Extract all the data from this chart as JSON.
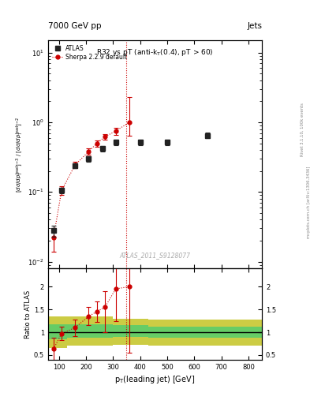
{
  "title_top": "7000 GeV pp",
  "title_right": "Jets",
  "plot_title": "R32 vs pT (anti-k_{T}(0.4), pT > 60)",
  "ylabel_main": "[dσ/dp_{T}^{lead}]^{-3} / [dσ/dp_{T}^{lead}]^{-2}",
  "ylabel_ratio": "Ratio to ATLAS",
  "xlabel": "p_{T}(leading jet) [GeV]",
  "watermark": "ATLAS_2011_S9128077",
  "right_label": "Rivet 3.1.10, 100k events",
  "right_label2": "mcplots.cern.ch [arXiv:1306.3436]",
  "atlas_x": [
    80,
    110,
    160,
    210,
    260,
    310,
    400,
    500,
    650
  ],
  "atlas_y": [
    0.028,
    0.105,
    0.24,
    0.3,
    0.42,
    0.52,
    0.52,
    0.52,
    0.65
  ],
  "atlas_yerr_lo": [
    0.005,
    0.01,
    0.02,
    0.03,
    0.04,
    0.05,
    0.05,
    0.05,
    0.06
  ],
  "atlas_yerr_hi": [
    0.005,
    0.01,
    0.02,
    0.03,
    0.04,
    0.05,
    0.05,
    0.05,
    0.06
  ],
  "sherpa_x": [
    80,
    110,
    160,
    210,
    240,
    270,
    310,
    360
  ],
  "sherpa_y": [
    0.022,
    0.105,
    0.245,
    0.38,
    0.5,
    0.62,
    0.75,
    1.0
  ],
  "sherpa_yerr_lo": [
    0.008,
    0.015,
    0.025,
    0.04,
    0.05,
    0.06,
    0.09,
    0.35
  ],
  "sherpa_yerr_hi": [
    0.008,
    0.015,
    0.025,
    0.04,
    0.05,
    0.06,
    0.09,
    1.3
  ],
  "ratio_sherpa_x": [
    80,
    110,
    160,
    210,
    240,
    270,
    310,
    360
  ],
  "ratio_sherpa_y": [
    0.63,
    0.97,
    1.1,
    1.35,
    1.45,
    1.55,
    1.95,
    2.0
  ],
  "ratio_sherpa_yerr_lo": [
    0.25,
    0.15,
    0.18,
    0.2,
    0.22,
    0.55,
    0.7,
    1.45
  ],
  "ratio_sherpa_yerr_hi": [
    0.25,
    0.15,
    0.18,
    0.2,
    0.22,
    0.35,
    0.55,
    0.5
  ],
  "vline_x": 350,
  "band_x": [
    60,
    130,
    200,
    300,
    430,
    600,
    850
  ],
  "band_green_lo": [
    0.85,
    0.88,
    0.88,
    0.9,
    0.88,
    0.88,
    0.88
  ],
  "band_green_hi": [
    1.18,
    1.18,
    1.18,
    1.15,
    1.12,
    1.12,
    1.12
  ],
  "band_yellow_lo": [
    0.65,
    0.7,
    0.7,
    0.73,
    0.7,
    0.7,
    0.7
  ],
  "band_yellow_hi": [
    1.35,
    1.35,
    1.35,
    1.3,
    1.28,
    1.28,
    1.28
  ],
  "main_ylim": [
    0.008,
    15
  ],
  "ratio_ylim": [
    0.4,
    2.4
  ],
  "xlim": [
    60,
    850
  ],
  "atlas_color": "#222222",
  "sherpa_color": "#cc0000",
  "band_green": "#66cc66",
  "band_yellow": "#cccc44",
  "vline_color": "#cc0000",
  "bg_color": "#ffffff"
}
